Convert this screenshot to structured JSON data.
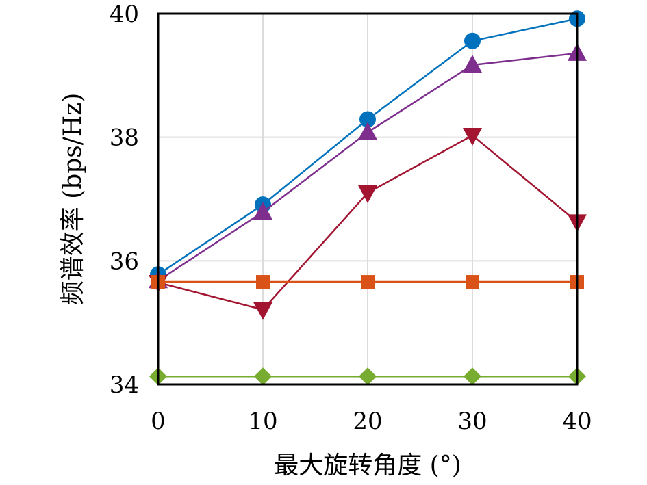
{
  "chart_data": {
    "type": "line",
    "title": "",
    "xlabel": "最大旋转角度 (°)",
    "ylabel": "频谱效率 (bps/Hz)",
    "x": [
      0,
      10,
      20,
      30,
      40
    ],
    "xlim": [
      0,
      40
    ],
    "ylim": [
      34,
      40
    ],
    "xticks": [
      "0",
      "10",
      "20",
      "30",
      "40"
    ],
    "yticks": [
      "34",
      "36",
      "38",
      "40"
    ],
    "grid": true,
    "legend": "none",
    "series": [
      {
        "name": "blue-circle",
        "marker": "circle",
        "color": "#0072BD",
        "values": [
          35.78,
          36.91,
          38.29,
          39.56,
          39.92
        ]
      },
      {
        "name": "purple-triangle-up",
        "marker": "triangle-up",
        "color": "#7E2F8E",
        "values": [
          35.68,
          36.79,
          38.08,
          39.17,
          39.36
        ]
      },
      {
        "name": "red-triangle-down",
        "marker": "triangle-down",
        "color": "#A2142F",
        "values": [
          35.65,
          35.21,
          37.1,
          38.03,
          36.63
        ]
      },
      {
        "name": "orange-square",
        "marker": "square",
        "color": "#D95319",
        "values": [
          35.66,
          35.66,
          35.66,
          35.66,
          35.66
        ]
      },
      {
        "name": "green-diamond",
        "marker": "diamond",
        "color": "#77AC30",
        "values": [
          34.13,
          34.13,
          34.13,
          34.13,
          34.13
        ]
      }
    ]
  }
}
